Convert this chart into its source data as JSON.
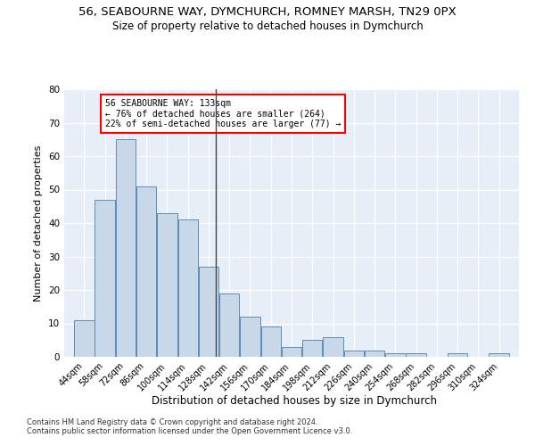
{
  "title_line1": "56, SEABOURNE WAY, DYMCHURCH, ROMNEY MARSH, TN29 0PX",
  "title_line2": "Size of property relative to detached houses in Dymchurch",
  "xlabel": "Distribution of detached houses by size in Dymchurch",
  "ylabel": "Number of detached properties",
  "bins": [
    44,
    58,
    72,
    86,
    100,
    114,
    128,
    142,
    156,
    170,
    184,
    198,
    212,
    226,
    240,
    254,
    268,
    282,
    296,
    310,
    324
  ],
  "values": [
    11,
    47,
    65,
    51,
    43,
    41,
    27,
    19,
    12,
    9,
    3,
    5,
    6,
    2,
    2,
    1,
    1,
    0,
    1,
    0,
    1
  ],
  "bar_color": "#c8d8e8",
  "bar_edge_color": "#5b8db8",
  "bar_width": 13.5,
  "subject_size": 133,
  "subject_line_color": "#444444",
  "annotation_text": "56 SEABOURNE WAY: 133sqm\n← 76% of detached houses are smaller (264)\n22% of semi-detached houses are larger (77) →",
  "annotation_box_color": "white",
  "annotation_box_edge_color": "red",
  "ylim": [
    0,
    80
  ],
  "yticks": [
    0,
    10,
    20,
    30,
    40,
    50,
    60,
    70,
    80
  ],
  "background_color": "#e8eef8",
  "footer_line1": "Contains HM Land Registry data © Crown copyright and database right 2024.",
  "footer_line2": "Contains public sector information licensed under the Open Government Licence v3.0.",
  "title_fontsize": 9.5,
  "subtitle_fontsize": 8.5,
  "tick_label_fontsize": 7,
  "ylabel_fontsize": 8,
  "xlabel_fontsize": 8.5,
  "footer_fontsize": 6,
  "annot_fontsize": 7
}
